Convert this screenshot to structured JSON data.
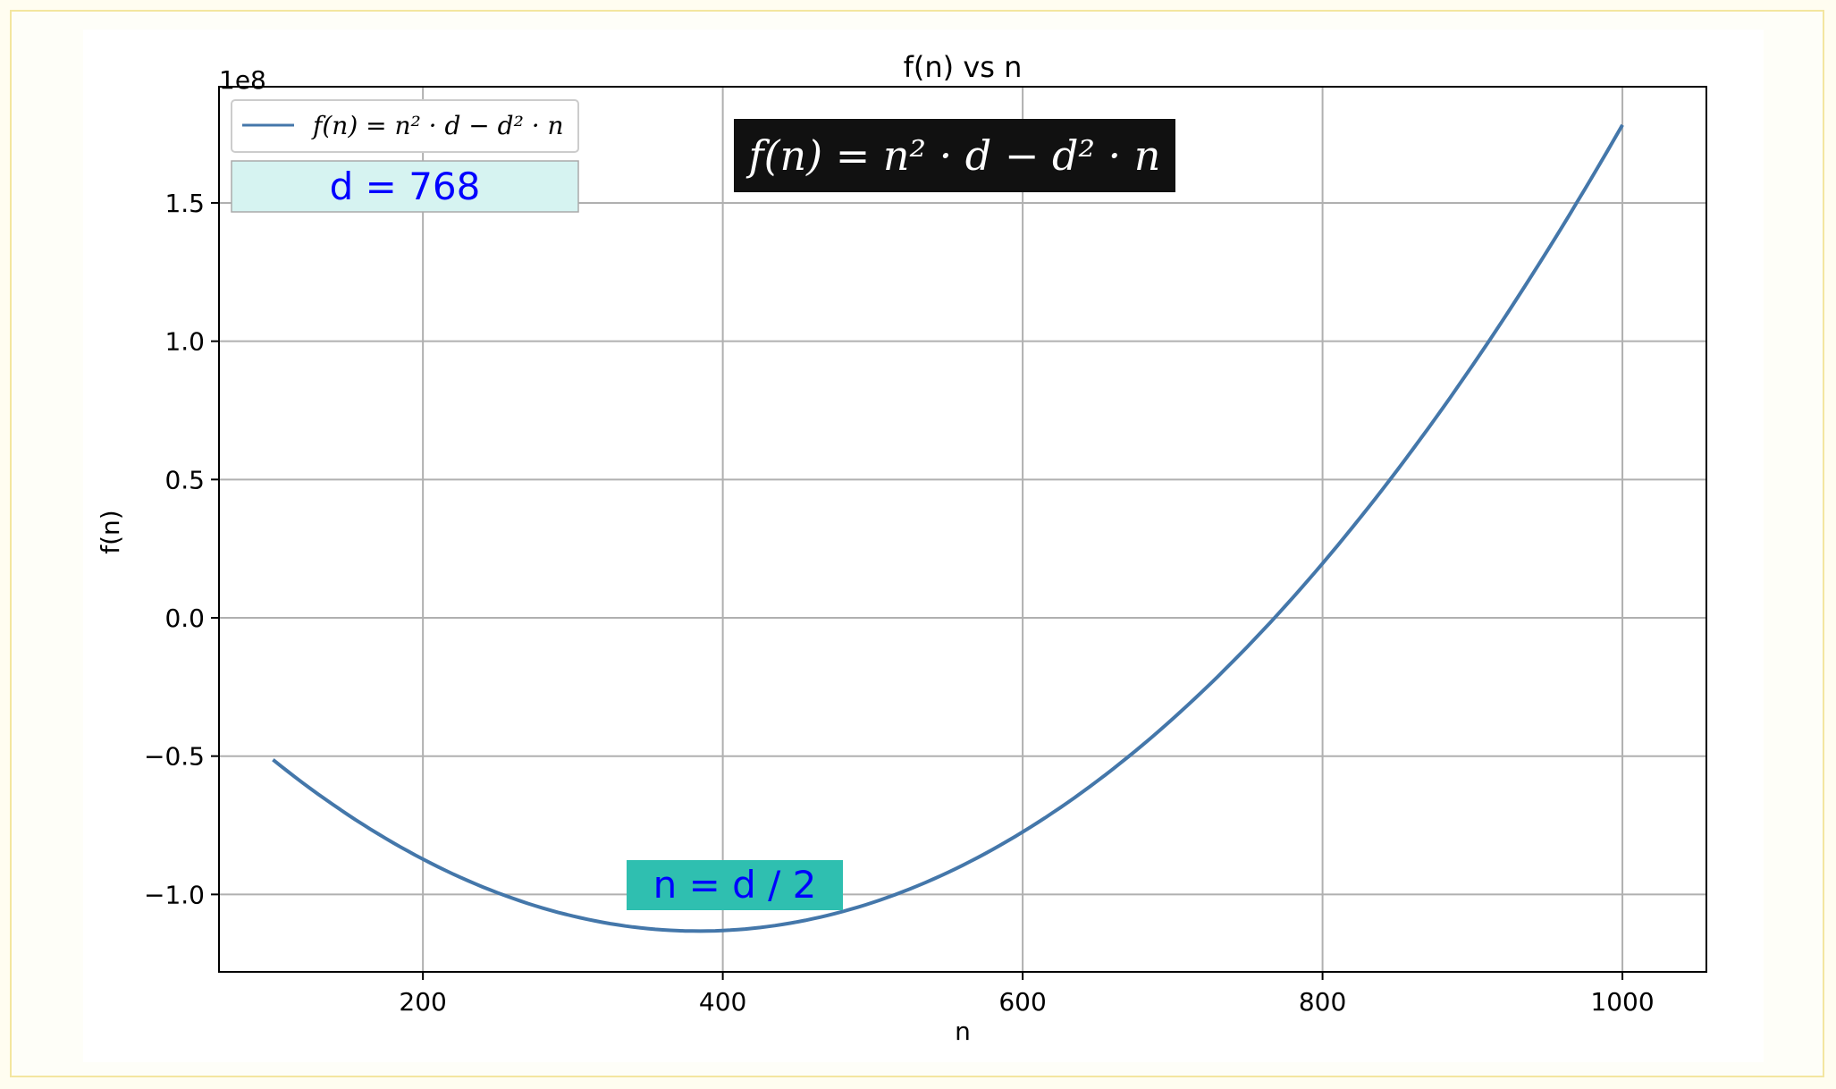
{
  "chart_data": {
    "type": "line",
    "title": "f(n) vs n",
    "xlabel": "n",
    "ylabel": "f(n)",
    "y_offset_label": "1e8",
    "y_multiplier": 100000000,
    "xlim": [
      64,
      1056
    ],
    "ylim": [
      -1.28,
      1.92
    ],
    "x_ticks": [
      200,
      400,
      600,
      800,
      1000
    ],
    "x_tick_labels": [
      "200",
      "400",
      "600",
      "800",
      "1000"
    ],
    "y_ticks": [
      -1.0,
      -0.5,
      0.0,
      0.5,
      1.0,
      1.5
    ],
    "y_tick_labels": [
      "−1.0",
      "−0.5",
      "0.0",
      "0.5",
      "1.0",
      "1.5"
    ],
    "grid": true,
    "legend_position": "top-left",
    "series": [
      {
        "name": "f(n) = n² · d − d² · n",
        "color": "#4477aa",
        "formula": "n^2 * d - d^2 * n",
        "d": 768,
        "x_range": [
          100,
          1000
        ]
      }
    ],
    "annotations": {
      "d_box": {
        "text": "d = 768",
        "bg": "#d6f3f1",
        "color": "#0000ff"
      },
      "formula_box": {
        "text": "f(n) = n² · d − d² · n",
        "bg": "#111111",
        "color": "#ffffff"
      },
      "min_box": {
        "text": "n = d / 2",
        "bg": "#2fbfb0",
        "color": "#0000ff"
      }
    }
  }
}
